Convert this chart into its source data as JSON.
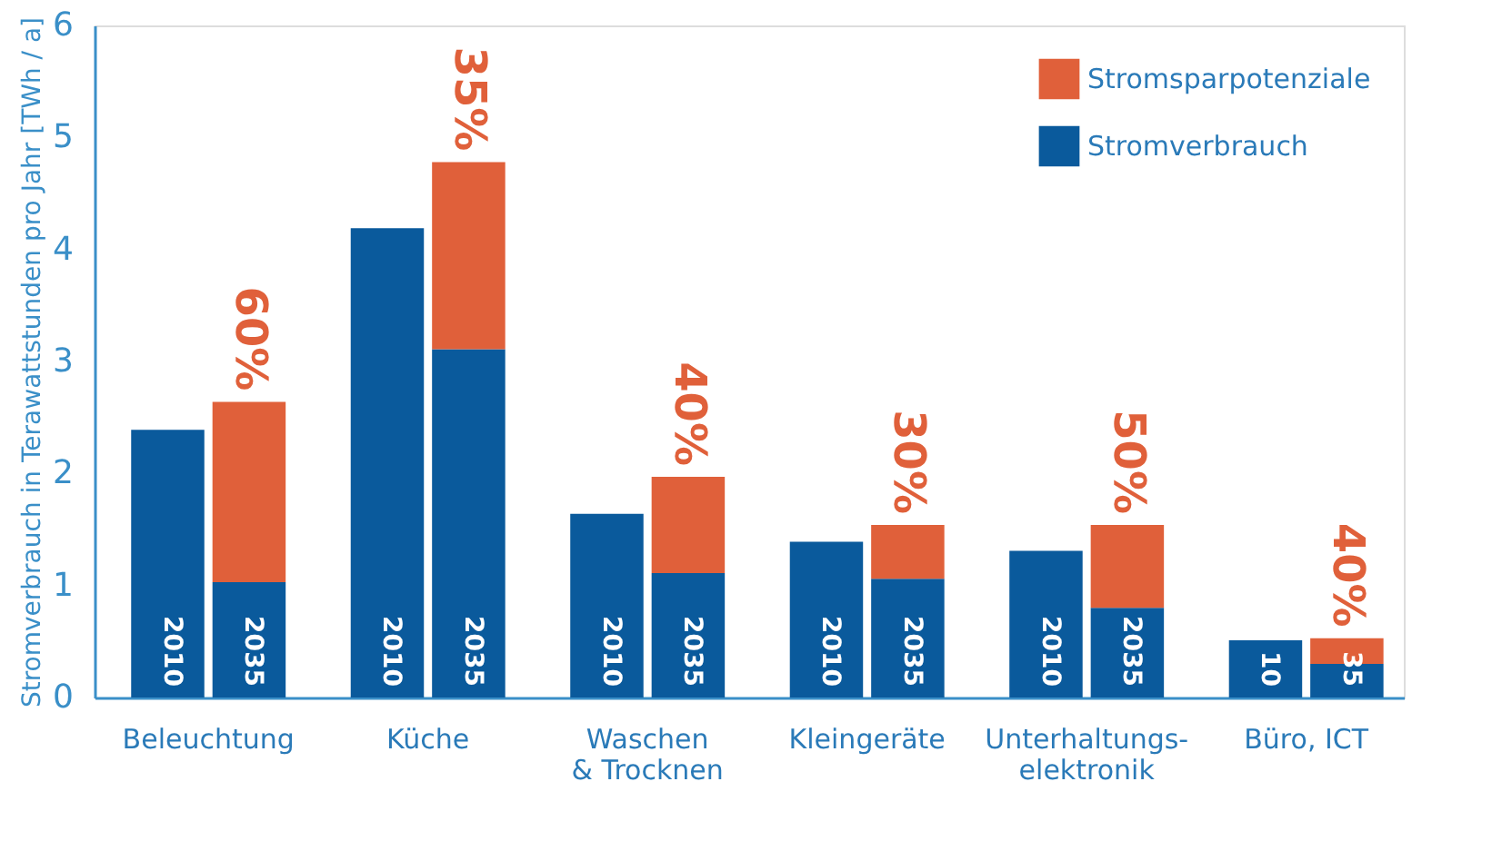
{
  "chart_data": {
    "type": "bar",
    "stacked": true,
    "ylabel": "Stromverbrauch in Terawattstunden pro Jahr [TWh / a]",
    "categories": [
      "2010",
      "2035",
      "2010",
      "2035",
      "2010",
      "2035",
      "2010",
      "2035",
      "2010",
      "2035",
      "10",
      "35"
    ],
    "annotations": [
      "Beleuchtung",
      "Küche",
      "Waschen\n& Trocknen",
      "Kleingeräte",
      "Unterhaltungs-\nelektronik",
      "Büro, ICT",
      {
        "text": "60%",
        "y": 2.64
      },
      {
        "text": "35%",
        "y": 4.78
      },
      {
        "text": "40%",
        "y": 1.97
      },
      {
        "text": "30%",
        "y": 1.54
      },
      {
        "text": "50%",
        "y": 1.54
      },
      {
        "text": "40%",
        "y": 0.53
      }
    ],
    "series": [
      {
        "name": "Stromverbrauch",
        "color": "#0a5a9c",
        "values": [
          2.39,
          1.03,
          4.19,
          3.11,
          1.64,
          1.11,
          1.39,
          1.06,
          1.31,
          0.8,
          0.51,
          0.3
        ]
      },
      {
        "name": "Stromsparpotenziale",
        "color": "#e0603a",
        "values": [
          null,
          1.61,
          null,
          1.67,
          null,
          0.86,
          null,
          0.48,
          null,
          0.74,
          null,
          0.23
        ]
      }
    ],
    "ylim": [
      0,
      6
    ],
    "yticks": [
      0,
      1,
      2,
      3,
      4,
      5,
      6
    ],
    "grid": false,
    "legend": "top right"
  }
}
